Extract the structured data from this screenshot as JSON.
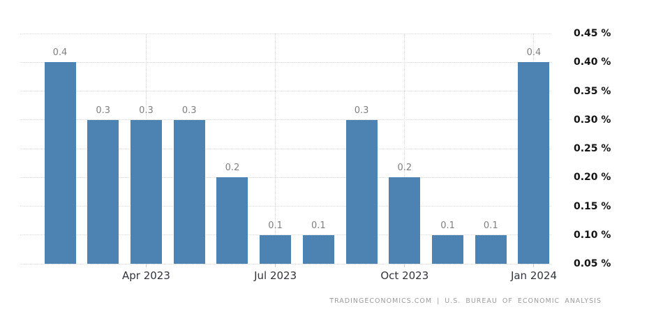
{
  "chart_data": {
    "type": "bar",
    "title": "",
    "xlabel": "",
    "ylabel": "",
    "ylim": [
      0.05,
      0.49
    ],
    "grid": true,
    "legend": "none",
    "bars": [
      {
        "value": 0.4,
        "label": "0.4"
      },
      {
        "value": 0.3,
        "label": "0.3"
      },
      {
        "value": 0.3,
        "label": "0.3"
      },
      {
        "value": 0.3,
        "label": "0.3"
      },
      {
        "value": 0.2,
        "label": "0.2"
      },
      {
        "value": 0.1,
        "label": "0.1"
      },
      {
        "value": 0.1,
        "label": "0.1"
      },
      {
        "value": 0.3,
        "label": "0.3"
      },
      {
        "value": 0.2,
        "label": "0.2"
      },
      {
        "value": 0.1,
        "label": "0.1"
      },
      {
        "value": 0.1,
        "label": "0.1"
      },
      {
        "value": 0.4,
        "label": "0.4"
      }
    ],
    "x_ticks": [
      {
        "index": 2,
        "label": "Apr 2023"
      },
      {
        "index": 5,
        "label": "Jul 2023"
      },
      {
        "index": 8,
        "label": "Oct 2023"
      },
      {
        "index": 11,
        "label": "Jan 2024"
      }
    ],
    "y_ticks": [
      {
        "value": 0.45,
        "label": "0.45 %"
      },
      {
        "value": 0.4,
        "label": "0.40 %"
      },
      {
        "value": 0.35,
        "label": "0.35 %"
      },
      {
        "value": 0.3,
        "label": "0.30 %"
      },
      {
        "value": 0.25,
        "label": "0.25 %"
      },
      {
        "value": 0.2,
        "label": "0.20 %"
      },
      {
        "value": 0.15,
        "label": "0.15 %"
      },
      {
        "value": 0.1,
        "label": "0.10 %"
      },
      {
        "value": 0.05,
        "label": "0.05 %"
      }
    ],
    "colors": {
      "bar": "#4d83b3",
      "grid": "#d9d9d9",
      "tick": "#c9c9c9",
      "data_label": "#7f7f7f",
      "y_tick_label": "#141414",
      "x_tick_label": "#32323c",
      "attribution": "#9b9b9b"
    }
  },
  "footer": {
    "attribution": "TRADINGECONOMICS.COM | U.S. BUREAU OF ECONOMIC ANALYSIS"
  }
}
